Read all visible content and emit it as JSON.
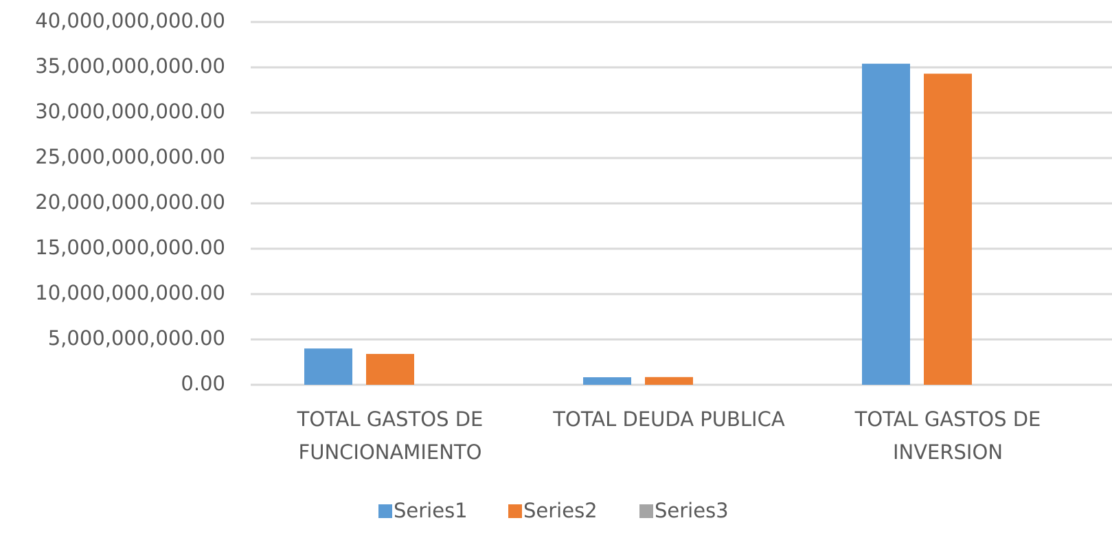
{
  "chart_data": {
    "type": "bar",
    "categories": [
      "TOTAL GASTOS DE FUNCIONAMIENTO",
      "TOTAL DEUDA PUBLICA",
      "TOTAL GASTOS DE INVERSION"
    ],
    "series": [
      {
        "name": "Series1",
        "color": "#5b9bd5",
        "values": [
          4000000000,
          830000000,
          35400000000
        ]
      },
      {
        "name": "Series2",
        "color": "#ed7d31",
        "values": [
          3400000000,
          850000000,
          34300000000
        ]
      },
      {
        "name": "Series3",
        "color": "#a5a5a5",
        "values": [
          0,
          0,
          0
        ]
      }
    ],
    "ylim": [
      0,
      40000000000
    ],
    "yticks": [
      {
        "value": 0,
        "label": "0.00"
      },
      {
        "value": 5000000000,
        "label": "5,000,000,000.00"
      },
      {
        "value": 10000000000,
        "label": "10,000,000,000.00"
      },
      {
        "value": 15000000000,
        "label": "15,000,000,000.00"
      },
      {
        "value": 20000000000,
        "label": "20,000,000,000.00"
      },
      {
        "value": 25000000000,
        "label": "25,000,000,000.00"
      },
      {
        "value": 30000000000,
        "label": "30,000,000,000.00"
      },
      {
        "value": 35000000000,
        "label": "35,000,000,000.00"
      },
      {
        "value": 40000000000,
        "label": "40,000,000,000.00"
      }
    ],
    "grid": true,
    "legend": "bottom"
  }
}
